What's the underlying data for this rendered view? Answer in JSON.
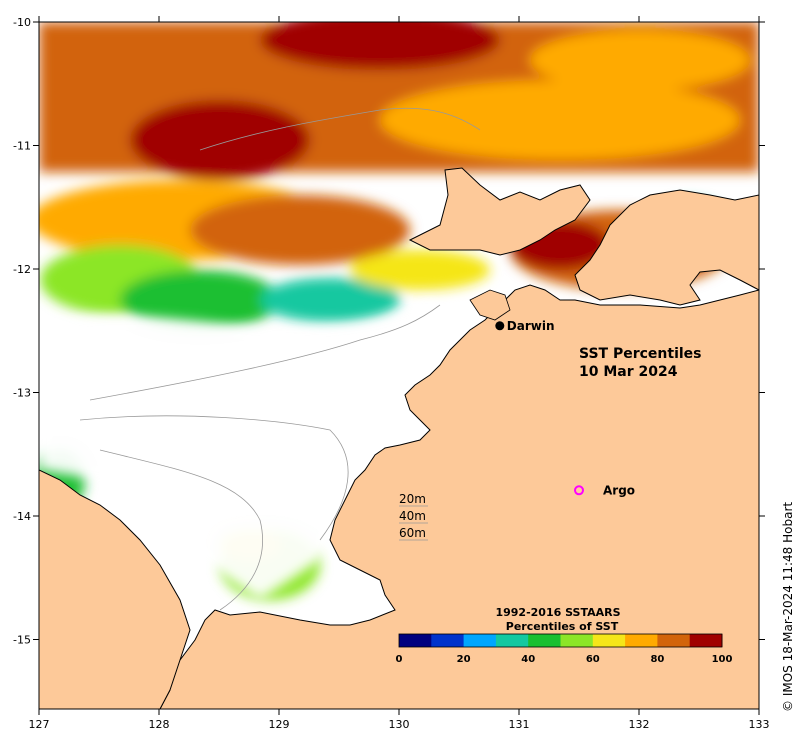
{
  "map": {
    "title_line1": "SST Percentiles",
    "title_line2": "10 Mar 2024",
    "x_ticks": [
      "127",
      "128",
      "129",
      "130",
      "131",
      "132",
      "133"
    ],
    "y_ticks": [
      "-10",
      "-11",
      "-12",
      "-13",
      "-14",
      "-15"
    ],
    "places": [
      {
        "name": "Darwin",
        "lon": 130.84,
        "lat": -12.46,
        "marker": "filled-dot"
      },
      {
        "name": "Argo",
        "lon": 131.5,
        "lat": -13.8,
        "marker": "open-circle"
      }
    ],
    "depth_legend": [
      "20m",
      "40m",
      "60m"
    ],
    "colorbar": {
      "title_line1": "1992-2016 SSTAARS",
      "title_line2": "Percentiles of SST",
      "ticks": [
        "0",
        "20",
        "40",
        "60",
        "80",
        "100"
      ],
      "colors": [
        "#00007f",
        "#0033cc",
        "#00a6ff",
        "#14c8a0",
        "#1abf30",
        "#8ce628",
        "#f5e619",
        "#ffaa00",
        "#d2640a",
        "#a00000"
      ]
    },
    "credit": "© IMOS 18-Mar-2024 11:48 Hobart",
    "land_color": "#fdc999",
    "ocean_color": "#ffffff"
  }
}
